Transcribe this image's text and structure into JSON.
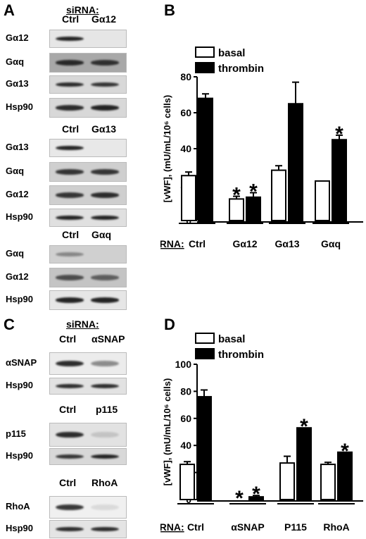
{
  "panels": {
    "a": "A",
    "b": "B",
    "c": "C",
    "d": "D"
  },
  "blots_a": {
    "sirna_label": "siRNA:",
    "groups": [
      {
        "lanes": [
          "Ctrl",
          "Gα12"
        ],
        "rows": [
          "Gα12",
          "Gαq",
          "Gα13",
          "Hsp90"
        ]
      },
      {
        "lanes": [
          "Ctrl",
          "Gα13"
        ],
        "rows": [
          "Gα13",
          "Gαq",
          "Gα12",
          "Hsp90"
        ]
      },
      {
        "lanes": [
          "Ctrl",
          "Gαq"
        ],
        "rows": [
          "Gαq",
          "Gα12",
          "Hsp90"
        ]
      }
    ]
  },
  "blots_c": {
    "sirna_label": "siRNA:",
    "groups": [
      {
        "lanes": [
          "Ctrl",
          "αSNAP"
        ],
        "rows": [
          "αSNAP",
          "Hsp90"
        ]
      },
      {
        "lanes": [
          "Ctrl",
          "p115"
        ],
        "rows": [
          "p115",
          "Hsp90"
        ]
      },
      {
        "lanes": [
          "Ctrl",
          "RhoA"
        ],
        "rows": [
          "RhoA",
          "Hsp90"
        ]
      }
    ]
  },
  "chart_data": [
    {
      "type": "bar",
      "ylabel": "[vWF], (mU/mL/10⁶ cells)",
      "xlabel_prefix": "siRNA:",
      "categories": [
        "Ctrl",
        "Gα12",
        "Gα13",
        "Gαq"
      ],
      "ylim": [
        0,
        80
      ],
      "yticks": [
        0,
        20,
        40,
        60,
        80
      ],
      "series": [
        {
          "name": "basal",
          "values": [
            25,
            12,
            28,
            22
          ],
          "errors": [
            2,
            1.5,
            2.5,
            0
          ],
          "significant": [
            false,
            true,
            false,
            false
          ],
          "color": "#ffffff"
        },
        {
          "name": "thrombin",
          "values": [
            68,
            13,
            65,
            45
          ],
          "errors": [
            2.5,
            2.5,
            12,
            2.5
          ],
          "significant": [
            false,
            true,
            false,
            true
          ],
          "color": "#000000"
        }
      ],
      "legend": "top-left",
      "marker": "*"
    },
    {
      "type": "bar",
      "ylabel": "[vWF], (mU/mL/10⁶ cells)",
      "xlabel_prefix": "siRNA:",
      "categories": [
        "Ctrl",
        "αSNAP",
        "P115",
        "RhoA"
      ],
      "ylim": [
        0,
        100
      ],
      "yticks": [
        0,
        20,
        40,
        60,
        80,
        100
      ],
      "series": [
        {
          "name": "basal",
          "values": [
            26,
            0,
            27,
            26
          ],
          "errors": [
            2,
            0,
            5,
            1.5
          ],
          "significant": [
            false,
            true,
            false,
            false
          ],
          "color": "#ffffff"
        },
        {
          "name": "thrombin",
          "values": [
            76,
            2,
            53,
            35
          ],
          "errors": [
            5,
            1,
            0,
            0
          ],
          "significant": [
            false,
            true,
            true,
            true
          ],
          "color": "#000000"
        }
      ],
      "legend": "top-left",
      "marker": "*"
    }
  ]
}
